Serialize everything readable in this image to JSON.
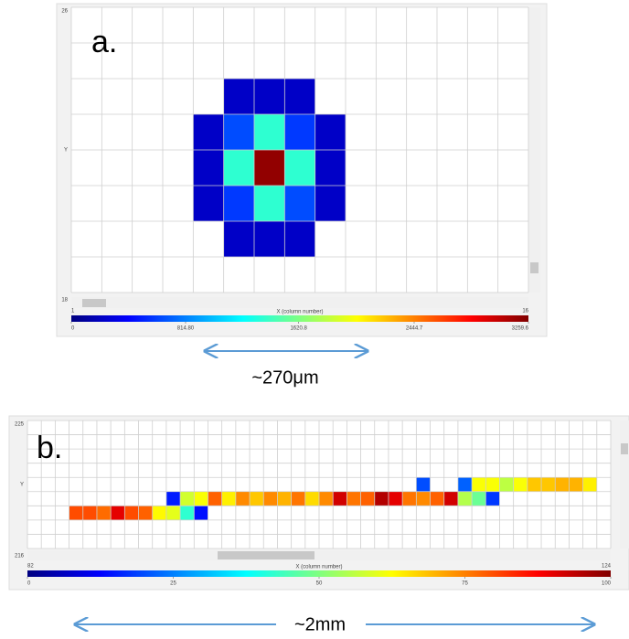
{
  "chart_data": [
    {
      "type": "heatmap",
      "panel_label": "a.",
      "xlabel": "X (column number)",
      "ylabel": "Y",
      "xlim": [
        1,
        16
      ],
      "ylim": [
        18,
        26
      ],
      "colormap": "jet",
      "grid": true,
      "cells": {
        "x": [
          6,
          7,
          8,
          5,
          6,
          7,
          8,
          9,
          5,
          6,
          7,
          8,
          9,
          5,
          6,
          7,
          8,
          9,
          6,
          7,
          8
        ],
        "y": [
          23,
          23,
          23,
          22,
          22,
          22,
          22,
          22,
          21,
          21,
          21,
          21,
          21,
          20,
          20,
          20,
          20,
          20,
          19,
          19,
          19
        ],
        "values": [
          230,
          230,
          230,
          230,
          650,
          1370,
          590,
          230,
          230,
          1370,
          3200,
          1370,
          230,
          230,
          590,
          1370,
          650,
          230,
          230,
          230,
          230
        ]
      },
      "clim": [
        0,
        3259.6
      ],
      "cticks": [
        0,
        {
          "value": 814.8,
          "label": "814.80"
        },
        1620.8,
        2444.7,
        3259.6
      ],
      "scale_label": "~270μm"
    },
    {
      "type": "heatmap",
      "panel_label": "b.",
      "xlabel": "X (column number)",
      "ylabel": "Y",
      "xlim": [
        82,
        124
      ],
      "ylim": [
        216,
        225
      ],
      "colormap": "jet",
      "grid": true,
      "cells": {
        "x": [
          85,
          86,
          87,
          88,
          89,
          90,
          91,
          92,
          93,
          94,
          92,
          93,
          94,
          95,
          96,
          97,
          98,
          99,
          100,
          101,
          102,
          103,
          104,
          105,
          106,
          107,
          108,
          109,
          110,
          111,
          112,
          113,
          114,
          115,
          110,
          113,
          114,
          115,
          116,
          117,
          118,
          119,
          120,
          121,
          122
        ],
        "y": [
          218,
          218,
          218,
          218,
          218,
          218,
          218,
          218,
          218,
          218,
          219,
          219,
          219,
          219,
          219,
          219,
          219,
          219,
          219,
          219,
          219,
          219,
          219,
          219,
          219,
          219,
          219,
          219,
          219,
          219,
          219,
          219,
          219,
          219,
          220,
          220,
          220,
          220,
          220,
          220,
          220,
          220,
          220,
          220,
          220
        ],
        "values": [
          80,
          80,
          77,
          90,
          80,
          78,
          63,
          60,
          42,
          14,
          15,
          58,
          62,
          78,
          64,
          74,
          68,
          74,
          70,
          76,
          66,
          74,
          92,
          76,
          78,
          95,
          90,
          76,
          74,
          78,
          92,
          55,
          48,
          18,
          20,
          22,
          62,
          62,
          56,
          62,
          68,
          68,
          70,
          70,
          64
        ]
      },
      "clim": [
        0,
        100
      ],
      "cticks": [
        0,
        25,
        50,
        75,
        100
      ],
      "scale_label": "~2mm"
    }
  ]
}
